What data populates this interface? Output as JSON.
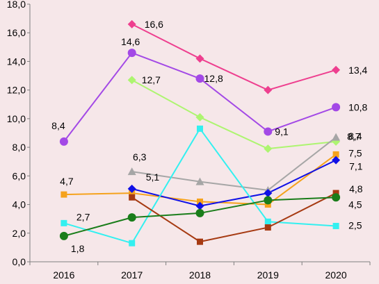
{
  "chart_data": {
    "type": "line",
    "title": "",
    "xlabel": "",
    "ylabel": "",
    "categories": [
      "2016",
      "2017",
      "2018",
      "2019",
      "2020"
    ],
    "ylim": [
      0,
      18
    ],
    "y_ticks": [
      "0,0",
      "2,0",
      "4,0",
      "6,0",
      "8,0",
      "10,0",
      "12,0",
      "14,0",
      "16,0",
      "18,0"
    ],
    "grid": false,
    "legend": "none",
    "series": [
      {
        "color": "#ee3f8f",
        "marker": "diamond",
        "values": [
          null,
          16.6,
          14.2,
          12.0,
          13.4
        ],
        "labels": [
          null,
          "16,6",
          null,
          null,
          "13,4"
        ]
      },
      {
        "color": "#a349e6",
        "marker": "circle",
        "values": [
          8.4,
          14.6,
          12.8,
          9.1,
          10.8
        ],
        "labels": [
          "8,4",
          "14,6",
          "12,8",
          "9,1",
          "10,8"
        ]
      },
      {
        "color": "#adf570",
        "marker": "diamond",
        "values": [
          null,
          12.7,
          10.1,
          7.9,
          8.4
        ],
        "labels": [
          null,
          "12,7",
          null,
          null,
          "8,4"
        ]
      },
      {
        "color": "#a6a6a6",
        "marker": "triangle",
        "values": [
          null,
          6.3,
          5.6,
          5.0,
          8.7
        ],
        "labels": [
          null,
          "6,3",
          null,
          null,
          "8,7"
        ]
      },
      {
        "color": "#f5a21c",
        "marker": "square",
        "values": [
          4.7,
          4.8,
          4.2,
          4.0,
          7.5
        ],
        "labels": [
          "4,7",
          null,
          null,
          null,
          "7,5"
        ]
      },
      {
        "color": "#1010e6",
        "marker": "diamond",
        "values": [
          null,
          5.1,
          3.9,
          4.8,
          7.1
        ],
        "labels": [
          null,
          "5,1",
          null,
          null,
          "7,1"
        ]
      },
      {
        "color": "#33f0f0",
        "marker": "square",
        "values": [
          2.7,
          1.3,
          9.3,
          2.8,
          2.5
        ],
        "labels": [
          "2,7",
          null,
          null,
          null,
          "2,5"
        ]
      },
      {
        "color": "#a63a12",
        "marker": "square",
        "values": [
          null,
          4.5,
          1.4,
          2.4,
          4.8
        ],
        "labels": [
          null,
          null,
          null,
          null,
          "4,8"
        ]
      },
      {
        "color": "#1a7d1a",
        "marker": "circle",
        "values": [
          1.8,
          3.1,
          3.4,
          4.3,
          4.5
        ],
        "labels": [
          "1,8",
          null,
          null,
          null,
          "4,5"
        ]
      }
    ]
  }
}
